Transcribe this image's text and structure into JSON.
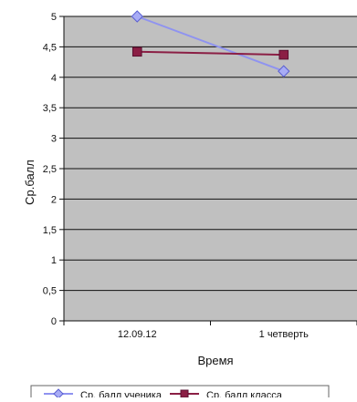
{
  "chart_data": {
    "type": "line",
    "categories": [
      "12.09.12",
      "1 четверть"
    ],
    "series": [
      {
        "name": "Ср. балл ученика",
        "values": [
          5,
          4.1
        ],
        "color": "#8f93f0",
        "marker": "diamond",
        "marker_color": "#a8acf5"
      },
      {
        "name": "Ср. балл класса",
        "values": [
          4.42,
          4.37
        ],
        "color": "#8b1f45",
        "marker": "square",
        "marker_color": "#8b1f45"
      }
    ],
    "xlabel": "Время",
    "ylabel": "Ср.балл",
    "ylim": [
      0,
      5
    ],
    "yticks": [
      {
        "value": 0,
        "label": "0"
      },
      {
        "value": 0.5,
        "label": "0,5"
      },
      {
        "value": 1,
        "label": "1"
      },
      {
        "value": 1.5,
        "label": "1,5"
      },
      {
        "value": 2,
        "label": "2"
      },
      {
        "value": 2.5,
        "label": "2,5"
      },
      {
        "value": 3,
        "label": "3"
      },
      {
        "value": 3.5,
        "label": "3,5"
      },
      {
        "value": 4,
        "label": "4"
      },
      {
        "value": 4.5,
        "label": "4,5"
      },
      {
        "value": 5,
        "label": "5"
      }
    ],
    "grid": true,
    "plot_background": "#c0c0c0",
    "legend_position": "bottom"
  }
}
